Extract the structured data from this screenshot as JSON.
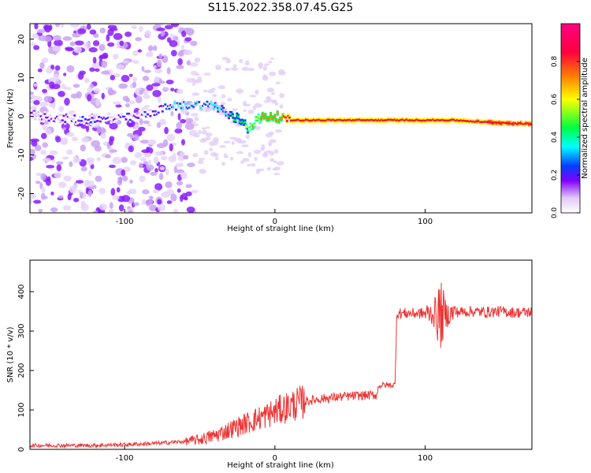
{
  "title": "S115.2022.358.07.45.G25",
  "chart_data": [
    {
      "type": "heatmap",
      "xlabel": "Height of straight line (km)",
      "ylabel": "Frequency (Hz)",
      "xlim": [
        -163,
        171
      ],
      "ylim": [
        -25,
        24
      ],
      "x_ticks": [
        -100,
        0,
        100
      ],
      "y_ticks": [
        -20,
        -10,
        0,
        10,
        20
      ],
      "colorbar": {
        "label": "Normalized spectral amplitude",
        "range": [
          0,
          1
        ],
        "ticks": [
          "0.0",
          "0.2",
          "0.4",
          "0.6",
          "0.8"
        ],
        "colors": [
          "#ffffff",
          "#e0c8f8",
          "#8000ff",
          "#0040ff",
          "#00ffff",
          "#00ff40",
          "#ffff00",
          "#ff8000",
          "#ff0040",
          "#ff0080"
        ]
      },
      "ridge": {
        "x": [
          -160,
          -120,
          -90,
          -70,
          -55,
          -45,
          -38,
          -30,
          -22,
          -18,
          -12,
          -6,
          0,
          10,
          40,
          80,
          120,
          140,
          171
        ],
        "freq": [
          0,
          -1,
          0,
          2.5,
          3,
          3,
          2.5,
          0,
          -1,
          -3,
          -1,
          0,
          0,
          -1,
          -1,
          -1,
          -1,
          -1.5,
          -2
        ],
        "amplitude": [
          0.15,
          0.2,
          0.2,
          0.3,
          0.35,
          0.35,
          0.4,
          0.5,
          0.6,
          0.6,
          0.7,
          0.8,
          0.8,
          0.9,
          0.9,
          0.9,
          0.9,
          0.95,
          0.98
        ]
      }
    },
    {
      "type": "line",
      "xlabel": "Height of straight line (km)",
      "ylabel": "SNR (10 * v/v)",
      "xlim": [
        -163,
        171
      ],
      "ylim": [
        0,
        480
      ],
      "x_ticks": [
        -100,
        0,
        100
      ],
      "y_ticks": [
        0,
        100,
        200,
        300,
        400
      ],
      "series": [
        {
          "color": "#ee3333",
          "x": [
            -163,
            -140,
            -120,
            -100,
            -80,
            -60,
            -50,
            -40,
            -30,
            -20,
            -10,
            0,
            10,
            20,
            30,
            40,
            50,
            60,
            68,
            69,
            75,
            80,
            81,
            85,
            95,
            100,
            105,
            110,
            115,
            120,
            130,
            140,
            150,
            160,
            171
          ],
          "y": [
            10,
            10,
            10,
            12,
            15,
            20,
            25,
            35,
            50,
            65,
            80,
            95,
            110,
            122,
            128,
            132,
            135,
            137,
            138,
            162,
            163,
            163,
            345,
            345,
            345,
            345,
            345,
            340,
            342,
            348,
            350,
            348,
            350,
            347,
            348
          ]
        }
      ]
    }
  ]
}
